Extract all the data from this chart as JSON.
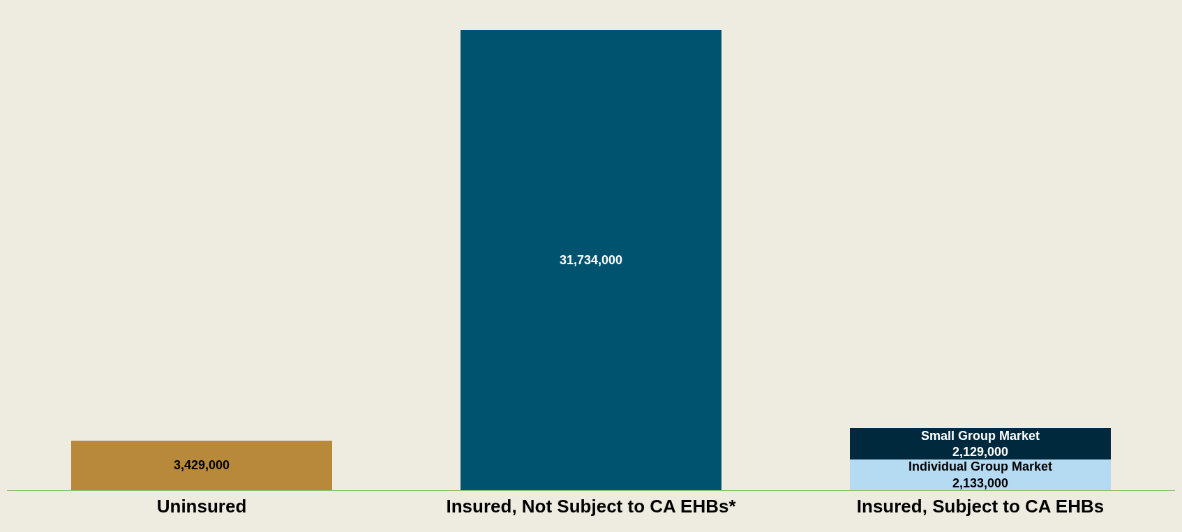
{
  "chart_data": {
    "type": "bar",
    "stacked": true,
    "legend": false,
    "grid": false,
    "categories": [
      "Uninsured",
      "Insured, Not Subject to CA EHBs*",
      "Insured, Subject to CA EHBs"
    ],
    "series": [
      {
        "values": [
          3429000,
          31734000,
          null
        ],
        "value_labels": [
          "3,429,000",
          "31,734,000",
          null
        ],
        "colors": [
          "#b8893a",
          "#00536e",
          null
        ]
      },
      {
        "name": "Individual Group Market",
        "color": "#b5dbf2",
        "values": [
          null,
          null,
          2133000
        ],
        "value_labels": [
          null,
          null,
          "2,133,000"
        ]
      },
      {
        "name": "Small Group Market",
        "color": "#00293d",
        "values": [
          null,
          null,
          2129000
        ],
        "value_labels": [
          null,
          null,
          "2,129,000"
        ]
      }
    ]
  }
}
